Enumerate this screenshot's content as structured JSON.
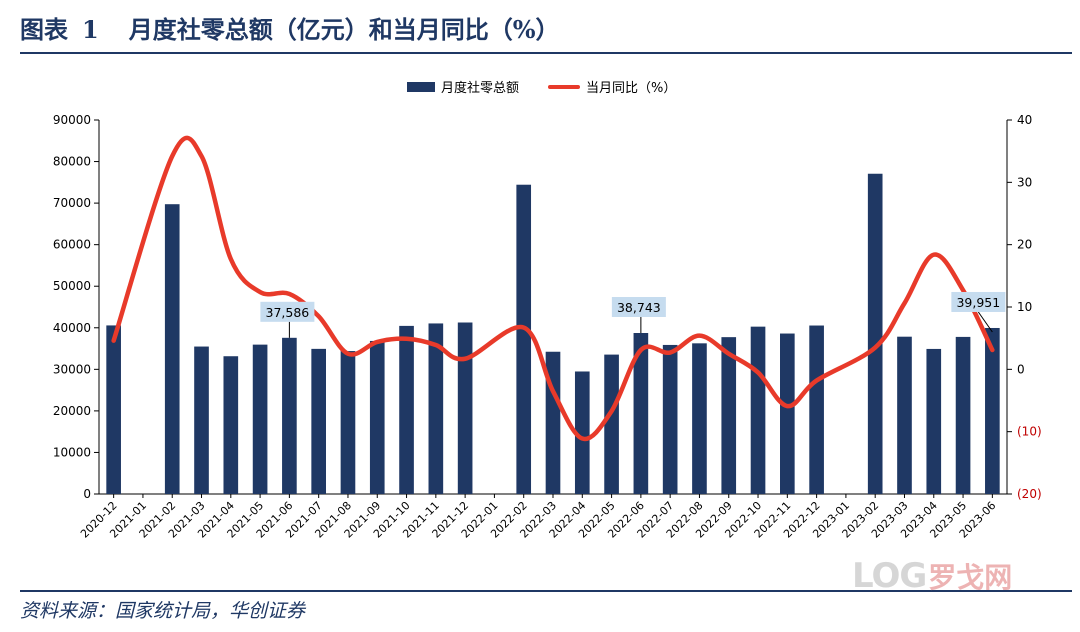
{
  "header": {
    "label": "图表",
    "number": "1",
    "text": "月度社零总额（亿元）和当月同比（%）"
  },
  "source": "资料来源：国家统计局，华创证券",
  "watermark": {
    "latin": "LOG",
    "cn": "罗戈网"
  },
  "colors": {
    "bar": "#1f3864",
    "line": "#e83a2a",
    "negative_tick": "#c00000",
    "callout_bg": "#c6dcef"
  },
  "chart_data": {
    "type": "bar+line",
    "legend": {
      "bar": "月度社零总额",
      "line": "当月同比（%）",
      "placement": "top-center"
    },
    "categories": [
      "2020-12",
      "2021-01",
      "2021-02",
      "2021-03",
      "2021-04",
      "2021-05",
      "2021-06",
      "2021-07",
      "2021-08",
      "2021-09",
      "2021-10",
      "2021-11",
      "2021-12",
      "2022-01",
      "2022-02",
      "2022-03",
      "2022-04",
      "2022-05",
      "2022-06",
      "2022-07",
      "2022-08",
      "2022-09",
      "2022-10",
      "2022-11",
      "2022-12",
      "2023-01",
      "2023-02",
      "2023-03",
      "2023-04",
      "2023-05",
      "2023-06"
    ],
    "series": [
      {
        "name": "月度社零总额",
        "axis": "left",
        "values": [
          40566,
          null,
          69737,
          35484,
          33153,
          35945,
          37586,
          34925,
          34395,
          36833,
          40454,
          41043,
          41269,
          null,
          74426,
          34233,
          29483,
          33547,
          38743,
          35870,
          36258,
          37745,
          40271,
          38615,
          40542,
          null,
          77067,
          37855,
          34910,
          37803,
          39951
        ]
      },
      {
        "name": "当月同比（%）",
        "axis": "right",
        "values": [
          4.6,
          null,
          34.2,
          34.2,
          17.7,
          12.4,
          12.1,
          8.5,
          2.5,
          4.4,
          4.9,
          3.9,
          1.7,
          null,
          6.7,
          -3.5,
          -11.1,
          -6.7,
          3.1,
          2.7,
          5.4,
          2.5,
          -0.5,
          -5.9,
          -1.8,
          null,
          3.5,
          10.6,
          18.4,
          12.7,
          3.1
        ]
      }
    ],
    "y_left": {
      "min": 0,
      "max": 90000,
      "ticks": [
        "0",
        "10000",
        "20000",
        "30000",
        "40000",
        "50000",
        "60000",
        "70000",
        "80000",
        "90000"
      ]
    },
    "y_right": {
      "min": -20,
      "max": 40,
      "ticks": [
        "(20)",
        "(10)",
        "0",
        "10",
        "20",
        "30",
        "40"
      ]
    },
    "annotations": [
      {
        "category": "2021-06",
        "label": "37,586"
      },
      {
        "category": "2022-06",
        "label": "38,743"
      },
      {
        "category": "2023-06",
        "label": "39,951"
      }
    ]
  }
}
